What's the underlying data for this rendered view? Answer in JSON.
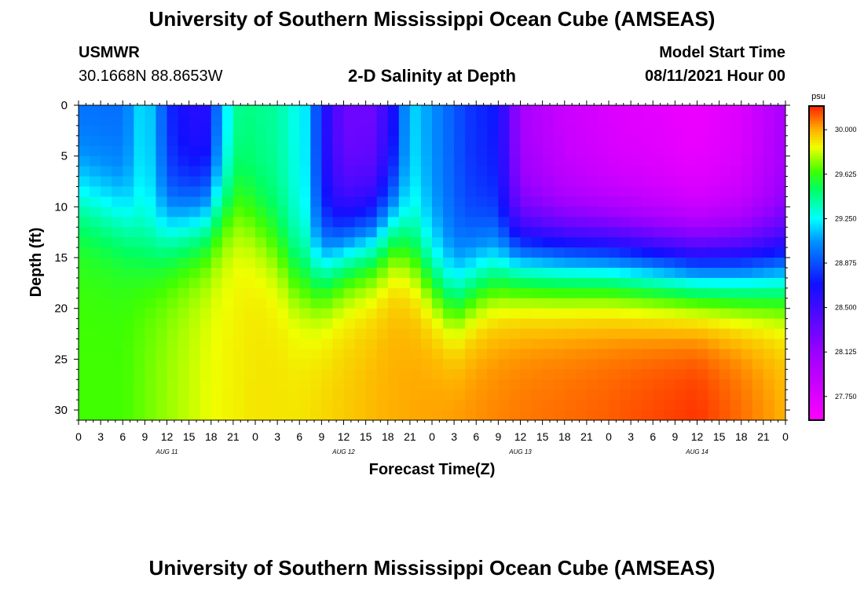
{
  "header": {
    "title": "University of Southern Mississippi Ocean Cube (AMSEAS)",
    "footer_title": "University of Southern Mississippi Ocean Cube (AMSEAS)",
    "station": "USMWR",
    "coordinates": "30.1668N  88.8653W",
    "subtitle": "2-D Salinity at Depth",
    "start_label": "Model Start Time",
    "start_value": "08/11/2021 Hour 00"
  },
  "chart_data": {
    "type": "heatmap",
    "title": "2-D Salinity at Depth",
    "xlabel": "Forecast Time(Z)",
    "ylabel": "Depth (ft)",
    "x_tick_labels": [
      "0",
      "3",
      "6",
      "9",
      "12",
      "15",
      "18",
      "21",
      "0",
      "3",
      "6",
      "9",
      "12",
      "15",
      "18",
      "21",
      "0",
      "3",
      "6",
      "9",
      "12",
      "15",
      "18",
      "21",
      "0",
      "3",
      "6",
      "9",
      "12",
      "15",
      "18",
      "21",
      "0"
    ],
    "x_range_hours": [
      0,
      96
    ],
    "day_labels": [
      {
        "label": "AUG 11",
        "hour": 12
      },
      {
        "label": "AUG 12",
        "hour": 36
      },
      {
        "label": "AUG 13",
        "hour": 60
      },
      {
        "label": "AUG 14",
        "hour": 84
      }
    ],
    "y_ticks": [
      0,
      5,
      10,
      15,
      20,
      25,
      30
    ],
    "ylim": [
      0,
      31
    ],
    "y_inverted": true,
    "colorbar": {
      "unit": "psu",
      "tick_labels": [
        "30.000",
        "29.625",
        "29.250",
        "28.875",
        "28.500",
        "28.125",
        "27.750"
      ],
      "tick_values": [
        30.0,
        29.625,
        29.25,
        28.875,
        28.5,
        28.125,
        27.75
      ],
      "range": [
        27.55,
        30.2
      ]
    },
    "colorscale": [
      [
        27.55,
        "#ff00ff"
      ],
      [
        28.1,
        "#a000ff"
      ],
      [
        28.7,
        "#1010ff"
      ],
      [
        29.05,
        "#0090ff"
      ],
      [
        29.25,
        "#00ffff"
      ],
      [
        29.5,
        "#00ff60"
      ],
      [
        29.65,
        "#40ff00"
      ],
      [
        29.85,
        "#f0ff00"
      ],
      [
        30.0,
        "#ffb000"
      ],
      [
        30.2,
        "#ff2000"
      ]
    ],
    "surface_value_by_hour": [
      [
        0,
        28.95
      ],
      [
        6,
        28.95
      ],
      [
        9,
        29.25
      ],
      [
        13,
        28.7
      ],
      [
        17,
        28.55
      ],
      [
        20,
        29.2
      ],
      [
        22,
        29.45
      ],
      [
        27,
        29.4
      ],
      [
        31,
        29.2
      ],
      [
        33,
        28.7
      ],
      [
        36,
        28.3
      ],
      [
        40,
        28.3
      ],
      [
        43,
        28.7
      ],
      [
        45,
        29.2
      ],
      [
        49,
        29.0
      ],
      [
        53,
        28.8
      ],
      [
        57,
        28.7
      ],
      [
        60,
        28.05
      ],
      [
        66,
        27.85
      ],
      [
        72,
        27.75
      ],
      [
        78,
        27.7
      ],
      [
        84,
        27.65
      ],
      [
        90,
        27.75
      ],
      [
        96,
        28.05
      ]
    ],
    "bottom_value_by_hour": [
      [
        0,
        29.65
      ],
      [
        6,
        29.65
      ],
      [
        12,
        29.75
      ],
      [
        18,
        29.85
      ],
      [
        24,
        29.9
      ],
      [
        30,
        29.9
      ],
      [
        36,
        29.95
      ],
      [
        42,
        30.0
      ],
      [
        48,
        30.02
      ],
      [
        54,
        30.05
      ],
      [
        60,
        30.08
      ],
      [
        66,
        30.1
      ],
      [
        72,
        30.12
      ],
      [
        78,
        30.15
      ],
      [
        84,
        30.18
      ],
      [
        90,
        30.1
      ],
      [
        96,
        30.0
      ]
    ],
    "halocline_depth_by_hour": [
      [
        0,
        9
      ],
      [
        6,
        11
      ],
      [
        9,
        14
      ],
      [
        13,
        12
      ],
      [
        17,
        11
      ],
      [
        20,
        10
      ],
      [
        22,
        10
      ],
      [
        26,
        13
      ],
      [
        30,
        17
      ],
      [
        33,
        16
      ],
      [
        36,
        14
      ],
      [
        40,
        13
      ],
      [
        43,
        12
      ],
      [
        45,
        14
      ],
      [
        48,
        17
      ],
      [
        51,
        19
      ],
      [
        54,
        17
      ],
      [
        57,
        16
      ],
      [
        60,
        15
      ],
      [
        64,
        15
      ],
      [
        68,
        15
      ],
      [
        72,
        15
      ],
      [
        78,
        15.5
      ],
      [
        84,
        16
      ],
      [
        90,
        16
      ],
      [
        96,
        16
      ]
    ]
  }
}
